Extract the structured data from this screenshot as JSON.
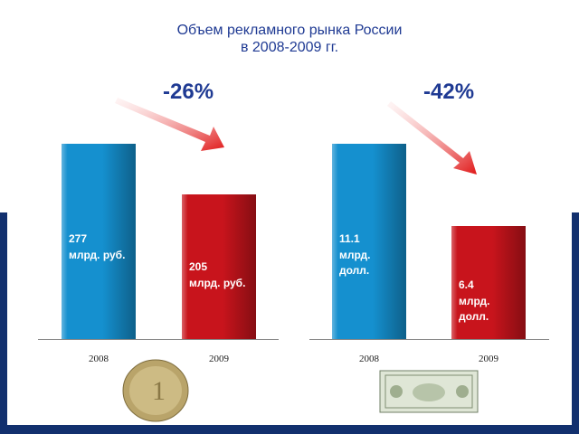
{
  "title": "Объем рекламного рынка России\nв 2008-2009 гг.",
  "chart_data": [
    {
      "type": "bar",
      "categories": [
        "2008",
        "2009"
      ],
      "values": [
        277,
        205
      ],
      "value_labels": [
        "277",
        "205"
      ],
      "unit": "млрд. руб.",
      "colors": [
        "#1590cf",
        "#c8141c"
      ],
      "annotation": "-26%"
    },
    {
      "type": "bar",
      "categories": [
        "2008",
        "2009"
      ],
      "values": [
        11.1,
        6.4
      ],
      "value_labels": [
        "11.1",
        "6.4"
      ],
      "unit": "млрд. долл.",
      "colors": [
        "#1590cf",
        "#c8141c"
      ],
      "annotation": "-42%"
    }
  ]
}
